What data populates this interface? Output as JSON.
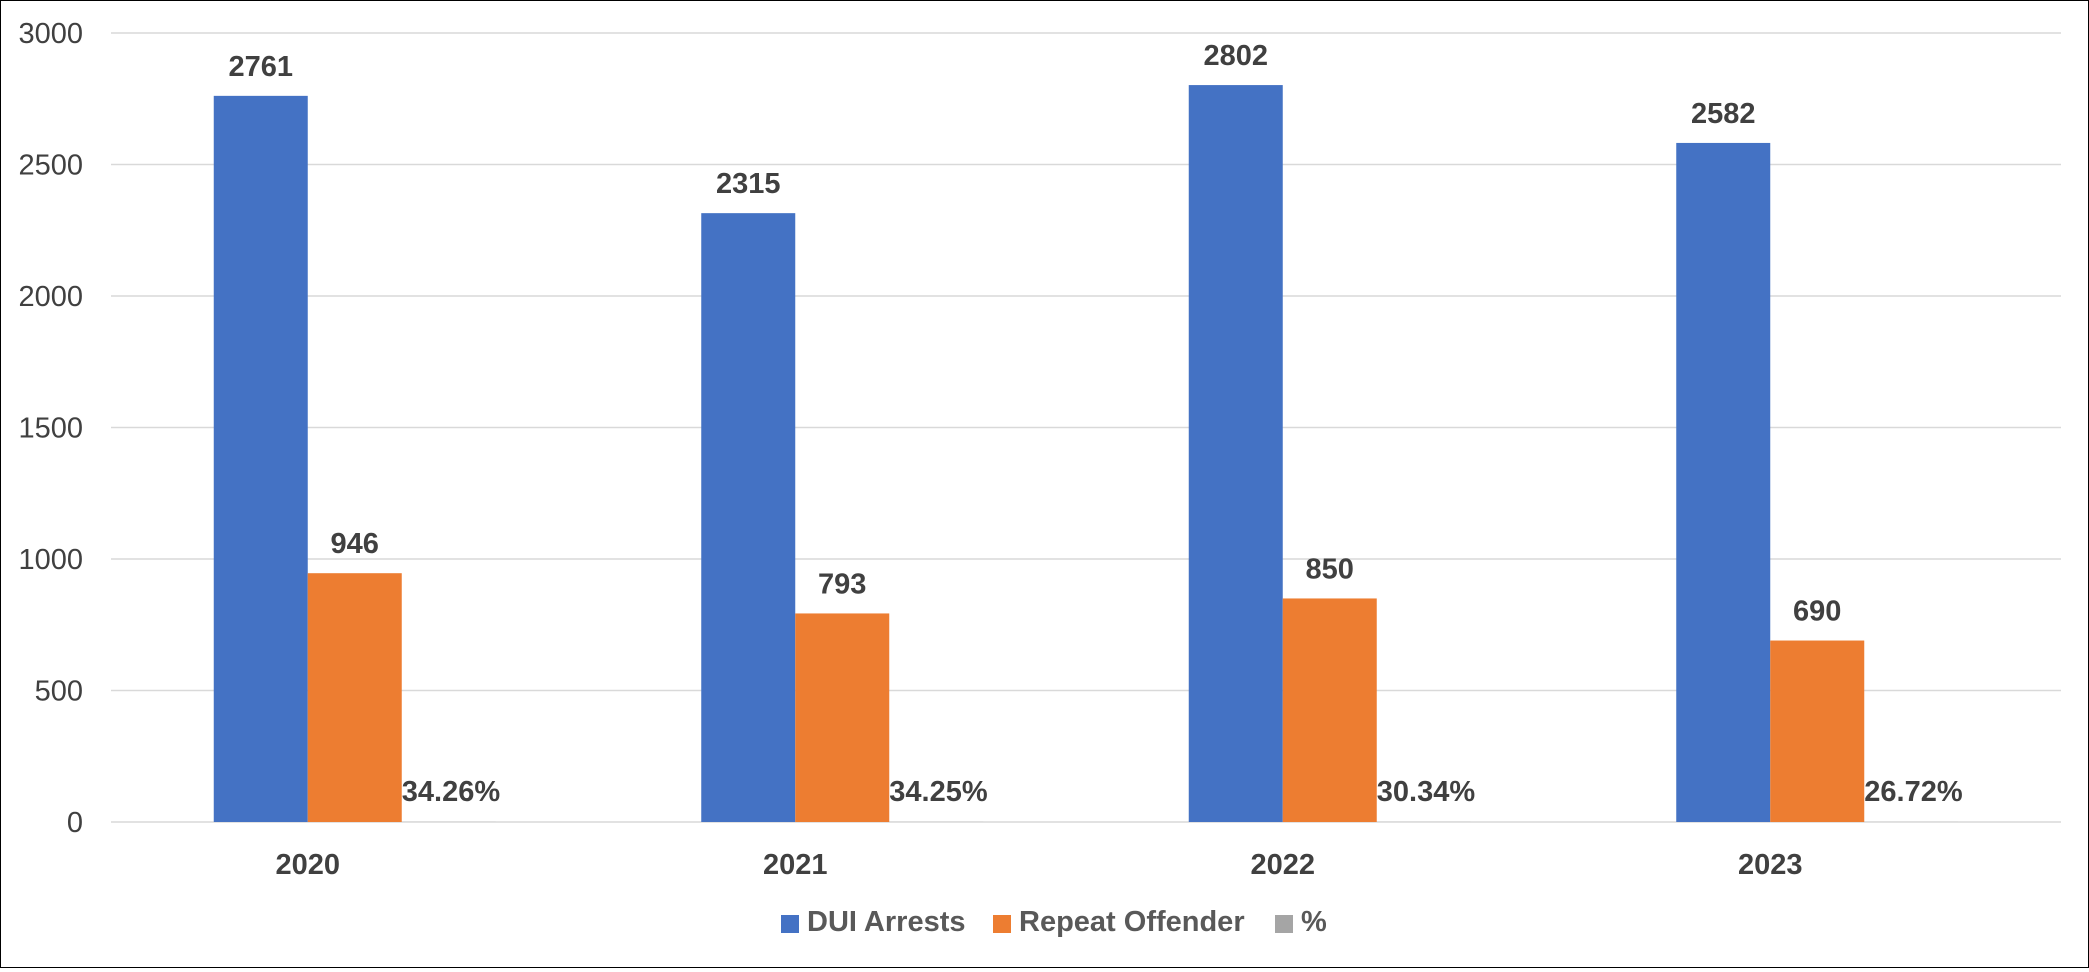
{
  "chart_data": {
    "type": "bar",
    "categories": [
      "2020",
      "2021",
      "2022",
      "2023"
    ],
    "series": [
      {
        "name": "DUI Arrests",
        "values": [
          2761,
          2315,
          2802,
          2582
        ],
        "color": "#4472C4"
      },
      {
        "name": "Repeat Offender",
        "values": [
          946,
          793,
          850,
          690
        ],
        "color": "#ED7D31"
      },
      {
        "name": "%",
        "values": [
          0.3426,
          0.3425,
          0.3034,
          0.2672
        ],
        "color": "#A5A5A5"
      }
    ],
    "data_labels": {
      "DUI Arrests": [
        "2761",
        "2315",
        "2802",
        "2582"
      ],
      "Repeat Offender": [
        "946",
        "793",
        "850",
        "690"
      ],
      "%": [
        "34.26%",
        "34.25%",
        "30.34%",
        "26.72%"
      ]
    },
    "yticks": [
      "0",
      "500",
      "1000",
      "1500",
      "2000",
      "2500",
      "3000"
    ],
    "ylim": [
      0,
      3000
    ],
    "title": "",
    "xlabel": "",
    "ylabel": "",
    "grid": true,
    "legend": "bottom-center",
    "gridline_color": "#D9D9D9",
    "axis_line_color": "#D9D9D9"
  }
}
